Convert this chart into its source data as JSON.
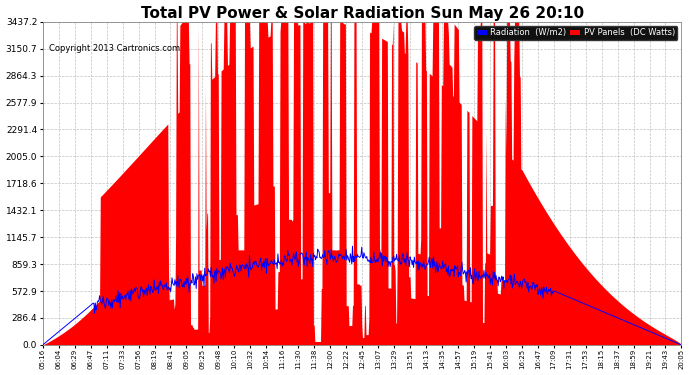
{
  "title": "Total PV Power & Solar Radiation Sun May 26 20:10",
  "copyright": "Copyright 2013 Cartronics.com",
  "legend_radiation": "Radiation  (W/m2)",
  "legend_pv": "PV Panels  (DC Watts)",
  "y_ticks": [
    0.0,
    286.4,
    572.9,
    859.3,
    1145.7,
    1432.1,
    1718.6,
    2005.0,
    2291.4,
    2577.9,
    2864.3,
    3150.7,
    3437.2
  ],
  "ylim": [
    0,
    3437.2
  ],
  "background_color": "#ffffff",
  "plot_bg_color": "#ffffff",
  "grid_color": "#bbbbbb",
  "title_fontsize": 11,
  "radiation_color": "#0000ff",
  "pv_color": "#ff0000",
  "x_tick_labels": [
    "05:16",
    "06:04",
    "06:29",
    "06:47",
    "07:11",
    "07:33",
    "07:56",
    "08:19",
    "08:41",
    "09:05",
    "09:25",
    "09:48",
    "10:10",
    "10:32",
    "10:54",
    "11:16",
    "11:30",
    "11:38",
    "12:00",
    "12:22",
    "12:45",
    "13:07",
    "13:29",
    "13:51",
    "14:13",
    "14:35",
    "14:57",
    "15:19",
    "15:41",
    "16:03",
    "16:25",
    "16:47",
    "17:09",
    "17:31",
    "17:53",
    "18:15",
    "18:37",
    "18:59",
    "19:21",
    "19:43",
    "20:05"
  ]
}
